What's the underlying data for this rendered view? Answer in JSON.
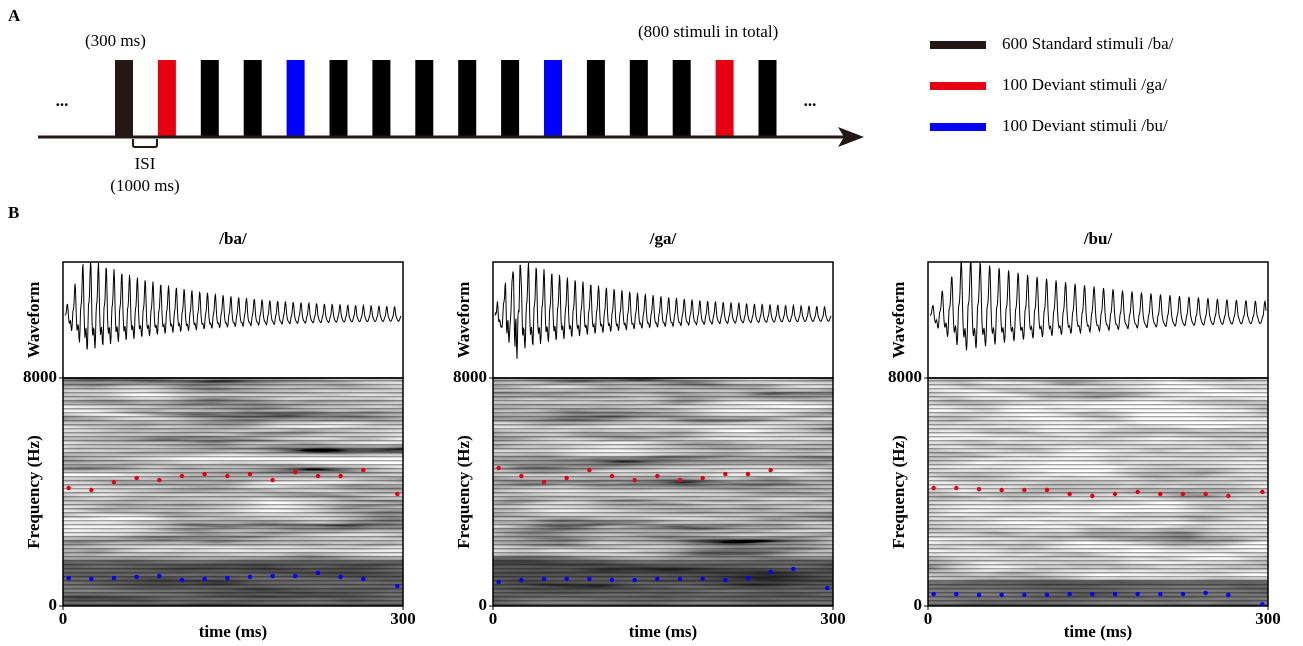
{
  "panel_labels": [
    "A",
    "B"
  ],
  "schematic": {
    "duration_label": "(300 ms)",
    "total_label": "(800 stimuli in total)",
    "ellipsis_left": "...",
    "ellipsis_right": "...",
    "isi_label": "ISI",
    "isi_duration": "(1000 ms)",
    "sequence_colors": [
      "#231815",
      "#e60012",
      "#000000",
      "#000000",
      "#0000ff",
      "#000000",
      "#000000",
      "#000000",
      "#000000",
      "#000000",
      "#0000ff",
      "#000000",
      "#000000",
      "#000000",
      "#e60012",
      "#000000"
    ],
    "legend": [
      {
        "color": "#231815",
        "label": "600 Standard stimuli /ba/"
      },
      {
        "color": "#e60012",
        "label": "100 Deviant stimuli /ga/"
      },
      {
        "color": "#0000ff",
        "label": "100 Deviant stimuli /bu/"
      }
    ]
  },
  "chart_data": [
    {
      "type": "spectrogram",
      "title": "/ba/",
      "waveform_label": "Waveform",
      "y_label": "Frequency (Hz)",
      "x_label": "time (ms)",
      "xlim": [
        0,
        300
      ],
      "ylim": [
        0,
        8000
      ],
      "xticks": [
        0,
        300
      ],
      "yticks": [
        0,
        8000
      ],
      "x": [
        5,
        25,
        45,
        65,
        85,
        105,
        125,
        145,
        165,
        185,
        205,
        225,
        245,
        265,
        295
      ],
      "series": [
        {
          "color": "#e60012",
          "values": [
            4140,
            4070,
            4350,
            4490,
            4420,
            4560,
            4630,
            4560,
            4630,
            4420,
            4700,
            4560,
            4560,
            4770,
            3930
          ]
        },
        {
          "color": "#0000ff",
          "values": [
            980,
            950,
            980,
            1020,
            1050,
            910,
            950,
            980,
            1020,
            1050,
            1050,
            1160,
            1020,
            950,
            700
          ]
        }
      ]
    },
    {
      "type": "spectrogram",
      "title": "/ga/",
      "waveform_label": "Waveform",
      "y_label": "Frequency (Hz)",
      "x_label": "time (ms)",
      "xlim": [
        0,
        300
      ],
      "ylim": [
        0,
        8000
      ],
      "xticks": [
        0,
        300
      ],
      "yticks": [
        0,
        8000
      ],
      "x": [
        5,
        25,
        45,
        65,
        85,
        105,
        125,
        145,
        165,
        185,
        205,
        225,
        245,
        265,
        295
      ],
      "series": [
        {
          "color": "#e60012",
          "values": [
            4840,
            4560,
            4350,
            4490,
            4770,
            4560,
            4420,
            4560,
            4420,
            4490,
            4630,
            4630,
            4770,
            null,
            null
          ]
        },
        {
          "color": "#0000ff",
          "values": [
            840,
            910,
            950,
            950,
            950,
            910,
            910,
            950,
            950,
            950,
            910,
            980,
            1190,
            1300,
            630
          ]
        }
      ]
    },
    {
      "type": "spectrogram",
      "title": "/bu/",
      "waveform_label": "Waveform",
      "y_label": "Frequency (Hz)",
      "x_label": "time (ms)",
      "xlim": [
        0,
        300
      ],
      "ylim": [
        0,
        8000
      ],
      "xticks": [
        0,
        300
      ],
      "yticks": [
        0,
        8000
      ],
      "x": [
        5,
        25,
        45,
        65,
        85,
        105,
        125,
        145,
        165,
        185,
        205,
        225,
        245,
        265,
        295
      ],
      "series": [
        {
          "color": "#e60012",
          "values": [
            4140,
            4140,
            4100,
            4070,
            4070,
            4070,
            3930,
            3860,
            3930,
            4000,
            3930,
            3930,
            3930,
            3860,
            4000
          ]
        },
        {
          "color": "#0000ff",
          "values": [
            420,
            420,
            390,
            390,
            390,
            390,
            420,
            420,
            420,
            420,
            420,
            420,
            460,
            390,
            60
          ]
        }
      ]
    }
  ]
}
